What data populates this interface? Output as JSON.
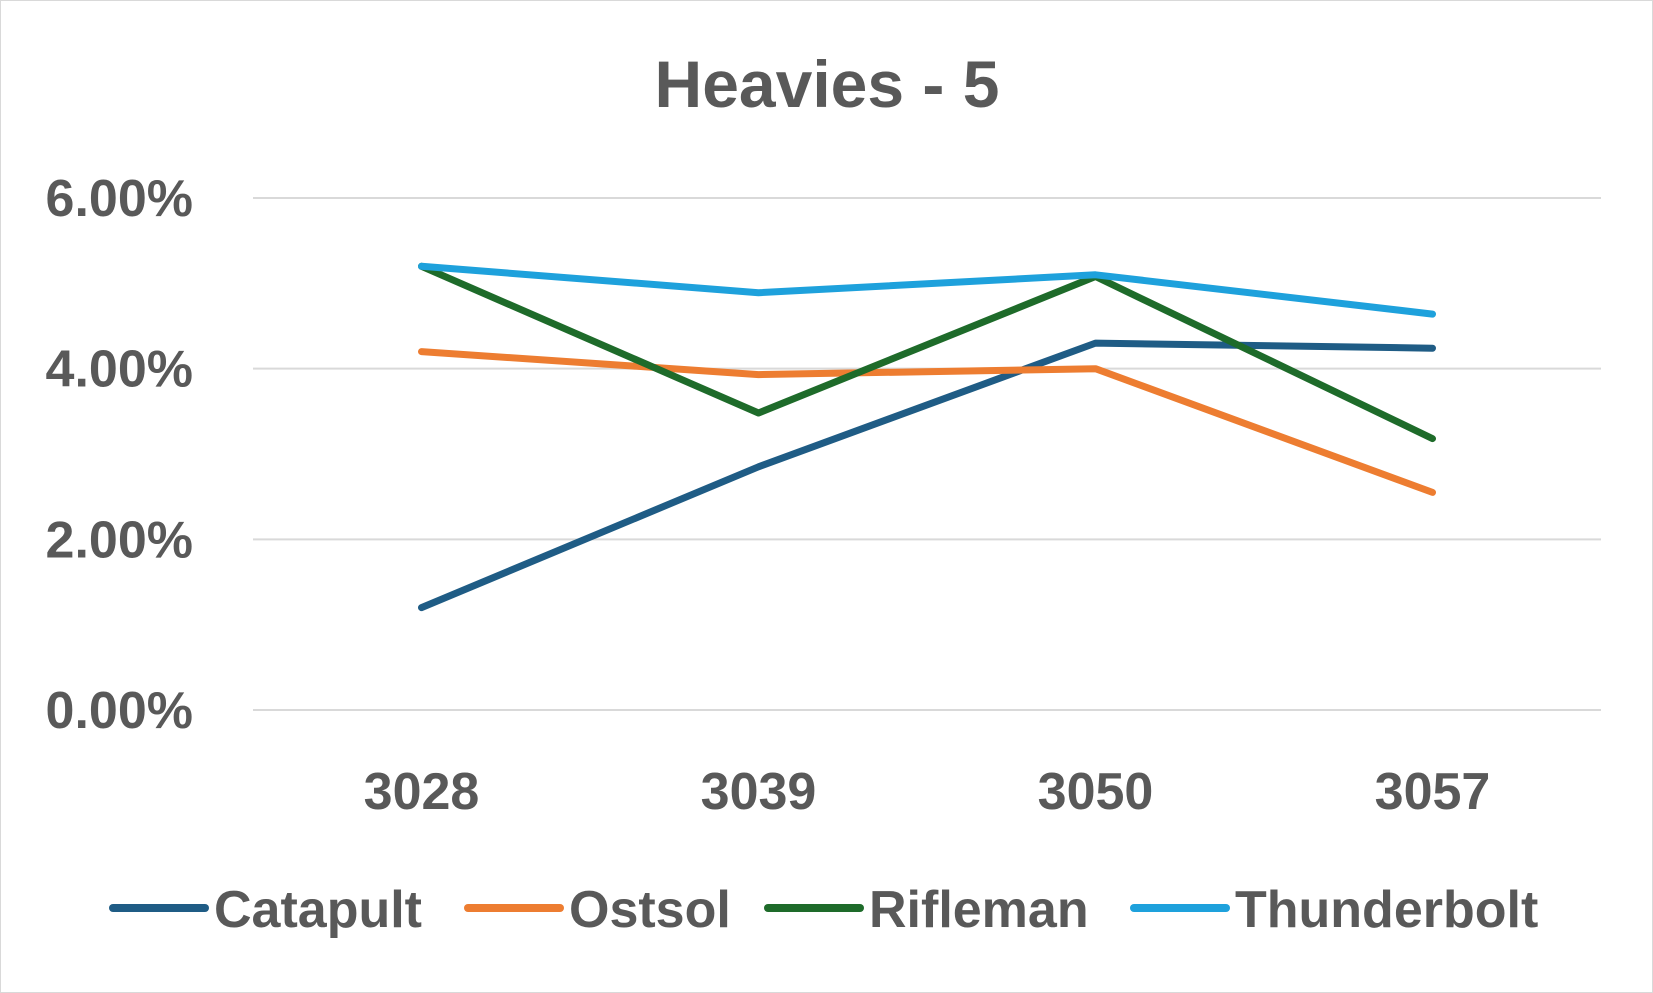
{
  "chart_data": {
    "type": "line",
    "title": "Heavies - 5",
    "xlabel": "",
    "ylabel": "",
    "categories": [
      "3028",
      "3039",
      "3050",
      "3057"
    ],
    "ylim": [
      0,
      0.06
    ],
    "yticks": [
      0,
      0.02,
      0.04,
      0.06
    ],
    "ytick_labels": [
      "0.00%",
      "2.00%",
      "4.00%",
      "6.00%"
    ],
    "grid": true,
    "legend_position": "bottom",
    "series": [
      {
        "name": "Catapult",
        "color": "#1f5c85",
        "values": [
          0.012,
          0.0285,
          0.043,
          0.0424
        ]
      },
      {
        "name": "Ostsol",
        "color": "#ed7d31",
        "values": [
          0.042,
          0.0393,
          0.04,
          0.0255
        ]
      },
      {
        "name": "Rifleman",
        "color": "#1e6b2a",
        "values": [
          0.052,
          0.0348,
          0.0508,
          0.0318
        ]
      },
      {
        "name": "Thunderbolt",
        "color": "#1ea1dc",
        "values": [
          0.052,
          0.0489,
          0.051,
          0.0464
        ]
      }
    ]
  }
}
